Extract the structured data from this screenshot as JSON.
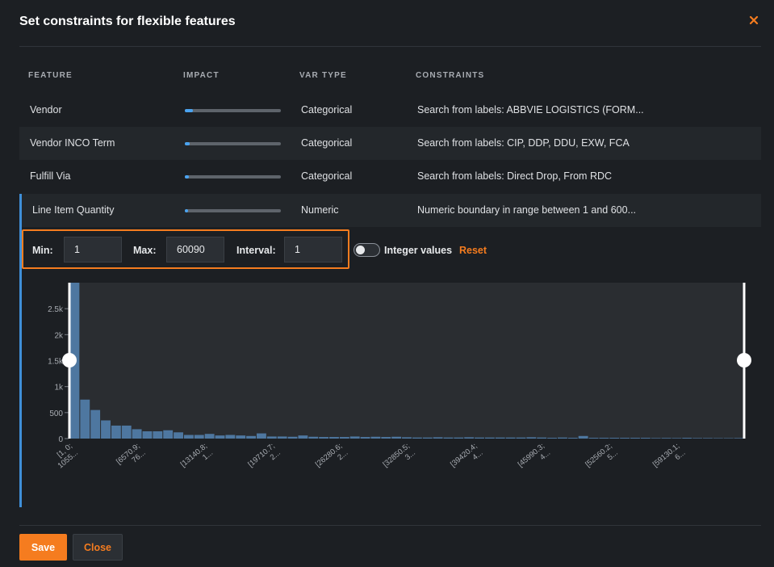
{
  "modal": {
    "title": "Set constraints for flexible features",
    "close_icon": "close-icon"
  },
  "colors": {
    "accent": "#f57c1f",
    "active_row": "#3f8fd8",
    "impact_fill": "#4aa3f0",
    "bar": "#4e77a0"
  },
  "table": {
    "headers": [
      "FEATURE",
      "IMPACT",
      "VAR TYPE",
      "CONSTRAINTS"
    ],
    "rows": [
      {
        "feature": "Vendor",
        "impact": 0.08,
        "var_type": "Categorical",
        "constraint": "Search from labels: ABBVIE LOGISTICS (FORM..."
      },
      {
        "feature": "Vendor INCO Term",
        "impact": 0.05,
        "var_type": "Categorical",
        "constraint": "Search from labels: CIP, DDP, DDU, EXW, FCA"
      },
      {
        "feature": "Fulfill Via",
        "impact": 0.04,
        "var_type": "Categorical",
        "constraint": "Search from labels: Direct Drop, From RDC"
      },
      {
        "feature": "Line Item Quantity",
        "impact": 0.03,
        "var_type": "Numeric",
        "constraint": "Numeric boundary in range between 1 and 600..."
      }
    ]
  },
  "controls": {
    "min_label": "Min:",
    "min_value": "1",
    "max_label": "Max:",
    "max_value": "60090",
    "interval_label": "Interval:",
    "interval_value": "1",
    "integer_toggle_label": "Integer values",
    "integer_toggle_on": false,
    "reset_label": "Reset"
  },
  "chart_data": {
    "type": "bar",
    "y_ticks": [
      "0",
      "500",
      "1k",
      "1.5k",
      "2k",
      "2.5k"
    ],
    "ylim": [
      0,
      3000
    ],
    "x_tick_labels": [
      [
        "[1, 0;",
        "1055..."
      ],
      [
        "[6570.9;",
        "76..."
      ],
      [
        "[13140.8;",
        "1..."
      ],
      [
        "[19710.7;",
        "2..."
      ],
      [
        "[26280.6;",
        "2..."
      ],
      [
        "[32850.5;",
        "3..."
      ],
      [
        "[39420.4;",
        "4..."
      ],
      [
        "[45990.3;",
        "4..."
      ],
      [
        "[52560.2;",
        "5..."
      ],
      [
        "[59130.1;",
        "6..."
      ]
    ],
    "values": [
      3000,
      750,
      550,
      350,
      250,
      250,
      180,
      140,
      140,
      160,
      120,
      70,
      70,
      90,
      60,
      70,
      60,
      50,
      100,
      40,
      40,
      35,
      60,
      35,
      30,
      30,
      30,
      40,
      30,
      35,
      30,
      35,
      25,
      20,
      20,
      25,
      20,
      20,
      25,
      20,
      20,
      20,
      20,
      20,
      25,
      20,
      15,
      20,
      15,
      50,
      15,
      15,
      15,
      15,
      15,
      15,
      10,
      12,
      10,
      15,
      10,
      10,
      8,
      8,
      10
    ],
    "range_min_pct": 0,
    "range_max_pct": 100
  },
  "footer": {
    "save_label": "Save",
    "close_label": "Close"
  }
}
